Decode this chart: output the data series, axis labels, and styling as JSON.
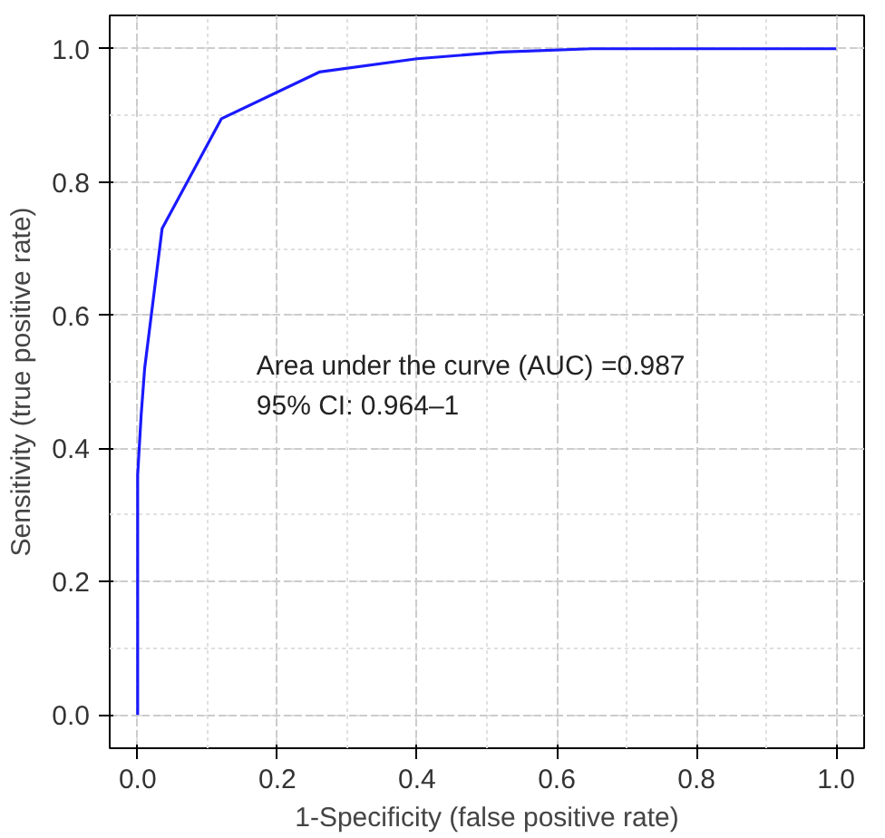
{
  "chart_data": {
    "type": "line",
    "xlabel": "1-Specificity (false positive rate)",
    "ylabel": "Sensitivity (true positive rate)",
    "x": [
      0,
      0,
      0.005,
      0.01,
      0.035,
      0.12,
      0.26,
      0.4,
      0.52,
      0.65,
      1.0
    ],
    "series": [
      {
        "color": "#1a1aff",
        "values": [
          0,
          0.36,
          0.45,
          0.52,
          0.73,
          0.895,
          0.965,
          0.985,
          0.995,
          1.0,
          1.0
        ]
      }
    ],
    "xlim": [
      -0.04,
      1.04
    ],
    "ylim": [
      -0.05,
      1.05
    ],
    "xticks": [
      {
        "value": 0,
        "label": "0.0"
      },
      0.2,
      0.4,
      0.6,
      0.8,
      {
        "value": 1,
        "label": "1.0"
      }
    ],
    "yticks": [
      {
        "value": 0,
        "label": "0.0"
      },
      0.2,
      0.4,
      0.6,
      0.8,
      {
        "value": 1,
        "label": "1.0"
      }
    ],
    "grid": true,
    "marker": "none",
    "line_style": "solid",
    "annotations": [
      "Area under the curve (AUC) =0.987",
      "95% CI: 0.964–1"
    ]
  }
}
